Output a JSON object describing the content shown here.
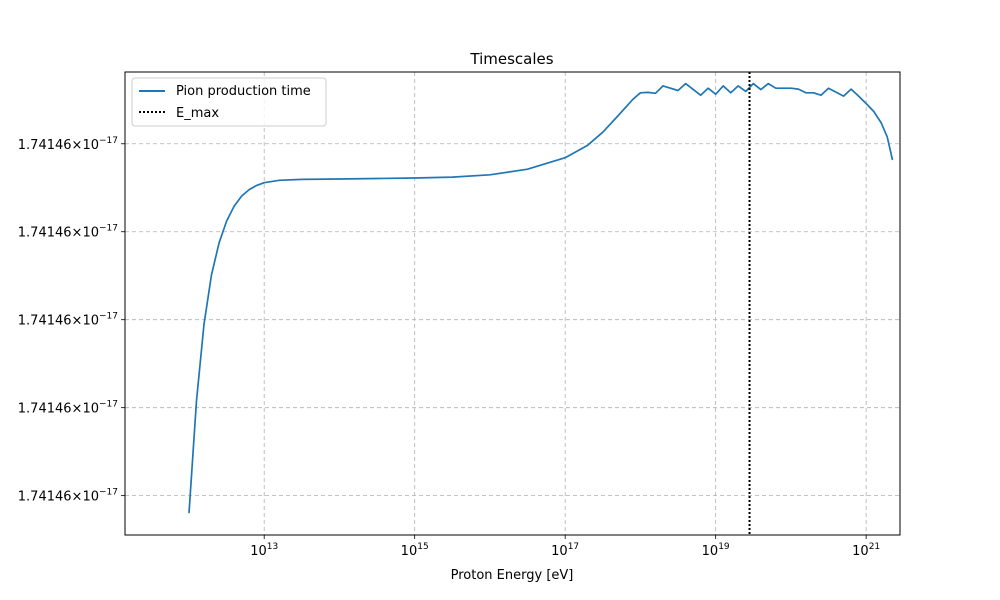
{
  "chart_data": {
    "type": "line",
    "title": "Timescales",
    "xlabel": "Proton Energy [eV]",
    "ylabel": "",
    "x_scale": "log",
    "xlim_exp": [
      11.15,
      21.45
    ],
    "ylim": [
      0,
      1
    ],
    "grid": true,
    "legend_position": "upper-left",
    "x_ticks": [
      {
        "exp": 13,
        "base": "10",
        "power": "13"
      },
      {
        "exp": 15,
        "base": "10",
        "power": "15"
      },
      {
        "exp": 17,
        "base": "10",
        "power": "17"
      },
      {
        "exp": 19,
        "base": "10",
        "power": "19"
      },
      {
        "exp": 21,
        "base": "10",
        "power": "21"
      }
    ],
    "y_ticks": [
      {
        "value": 0.085,
        "mantissa": "1.74146",
        "power": "−17"
      },
      {
        "value": 0.275,
        "mantissa": "1.74146",
        "power": "−17"
      },
      {
        "value": 0.465,
        "mantissa": "1.74146",
        "power": "−17"
      },
      {
        "value": 0.655,
        "mantissa": "1.74146",
        "power": "−17"
      },
      {
        "value": 0.845,
        "mantissa": "1.74146",
        "power": "−17"
      }
    ],
    "series": [
      {
        "name": "Pion production time",
        "color": "#1f77b4",
        "style": "solid",
        "points": [
          [
            12.0,
            0.047
          ],
          [
            12.1,
            0.29
          ],
          [
            12.2,
            0.455
          ],
          [
            12.3,
            0.562
          ],
          [
            12.4,
            0.631
          ],
          [
            12.5,
            0.678
          ],
          [
            12.6,
            0.71
          ],
          [
            12.7,
            0.732
          ],
          [
            12.8,
            0.746
          ],
          [
            12.9,
            0.755
          ],
          [
            13.0,
            0.761
          ],
          [
            13.2,
            0.766
          ],
          [
            13.5,
            0.768
          ],
          [
            14.0,
            0.769
          ],
          [
            14.5,
            0.77
          ],
          [
            15.0,
            0.771
          ],
          [
            15.5,
            0.773
          ],
          [
            16.0,
            0.778
          ],
          [
            16.5,
            0.79
          ],
          [
            17.0,
            0.815
          ],
          [
            17.3,
            0.842
          ],
          [
            17.5,
            0.87
          ],
          [
            17.7,
            0.905
          ],
          [
            17.9,
            0.941
          ],
          [
            18.0,
            0.955
          ],
          [
            18.1,
            0.956
          ],
          [
            18.2,
            0.954
          ],
          [
            18.3,
            0.97
          ],
          [
            18.5,
            0.96
          ],
          [
            18.6,
            0.975
          ],
          [
            18.8,
            0.95
          ],
          [
            18.9,
            0.965
          ],
          [
            19.0,
            0.952
          ],
          [
            19.1,
            0.97
          ],
          [
            19.2,
            0.955
          ],
          [
            19.3,
            0.97
          ],
          [
            19.4,
            0.958
          ],
          [
            19.5,
            0.975
          ],
          [
            19.6,
            0.962
          ],
          [
            19.7,
            0.975
          ],
          [
            19.8,
            0.965
          ],
          [
            20.0,
            0.965
          ],
          [
            20.1,
            0.963
          ],
          [
            20.2,
            0.955
          ],
          [
            20.3,
            0.955
          ],
          [
            20.4,
            0.95
          ],
          [
            20.5,
            0.965
          ],
          [
            20.7,
            0.948
          ],
          [
            20.8,
            0.963
          ],
          [
            20.9,
            0.948
          ],
          [
            21.0,
            0.932
          ],
          [
            21.1,
            0.915
          ],
          [
            21.2,
            0.89
          ],
          [
            21.28,
            0.86
          ],
          [
            21.35,
            0.81
          ]
        ]
      },
      {
        "name": "E_max",
        "color": "#000000",
        "style": "dotted",
        "vertical_line_exp": 19.45
      }
    ]
  }
}
